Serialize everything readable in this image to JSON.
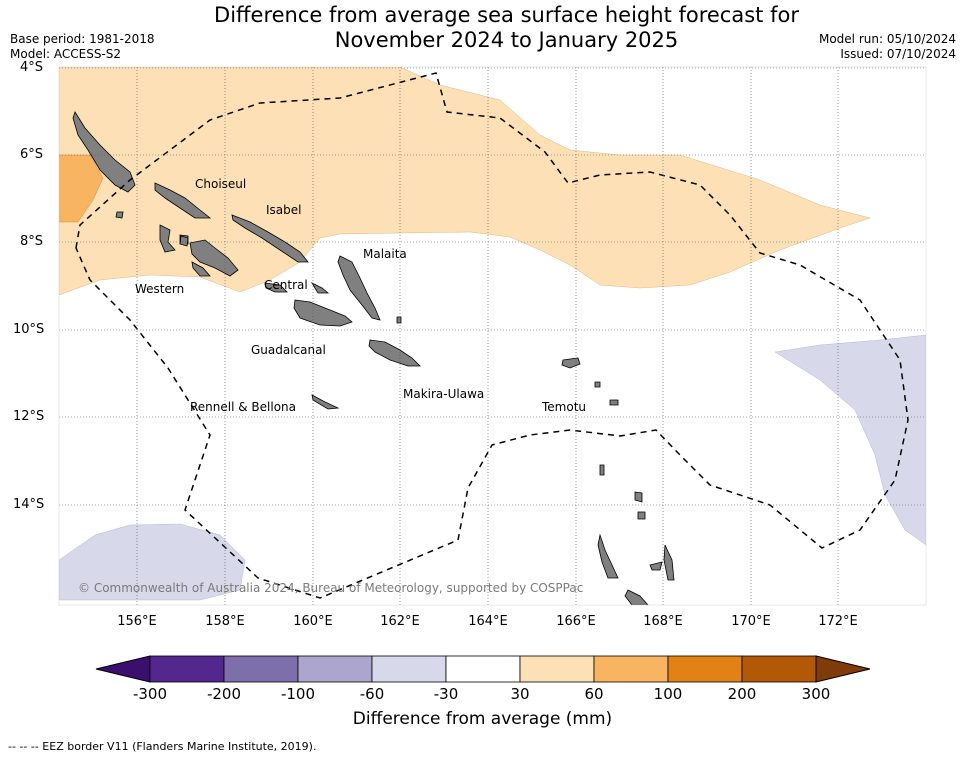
{
  "header": {
    "title_line1": "Difference from average sea surface height forecast for",
    "title_line2": "November 2024 to January 2025",
    "base_period": "Base period: 1981-2018",
    "model": "Model: ACCESS-S2",
    "model_run": "Model run: 05/10/2024",
    "issued": "Issued: 07/10/2024"
  },
  "map": {
    "lat_labels": [
      "4°S",
      "6°S",
      "8°S",
      "10°S",
      "12°S",
      "14°S"
    ],
    "lon_labels": [
      "156°E",
      "158°E",
      "160°E",
      "162°E",
      "164°E",
      "166°E",
      "168°E",
      "170°E",
      "172°E"
    ],
    "province_labels": [
      "Choiseul",
      "Isabel",
      "Malaita",
      "Western",
      "Central",
      "Guadalcanal",
      "Makira-Ulawa",
      "Rennell & Bellona",
      "Temotu"
    ],
    "copyright": "© Commonwealth of Australia 2024, Bureau of Meteorology, supported by COSPPac"
  },
  "legend": {
    "colors": [
      "#3b0f6f",
      "#54278f",
      "#7d6fab",
      "#aca6cf",
      "#d7d8e9",
      "#ffffff",
      "#fde0b6",
      "#f8b460",
      "#e08214",
      "#b35806",
      "#7f3b08"
    ],
    "tick_labels": [
      "-300",
      "-200",
      "-100",
      "-60",
      "-30",
      "30",
      "60",
      "100",
      "200",
      "300"
    ],
    "label": "Difference from average (mm)"
  },
  "footnote": "--  --  -- EEZ border V11 (Flanders Marine Institute, 2019)."
}
